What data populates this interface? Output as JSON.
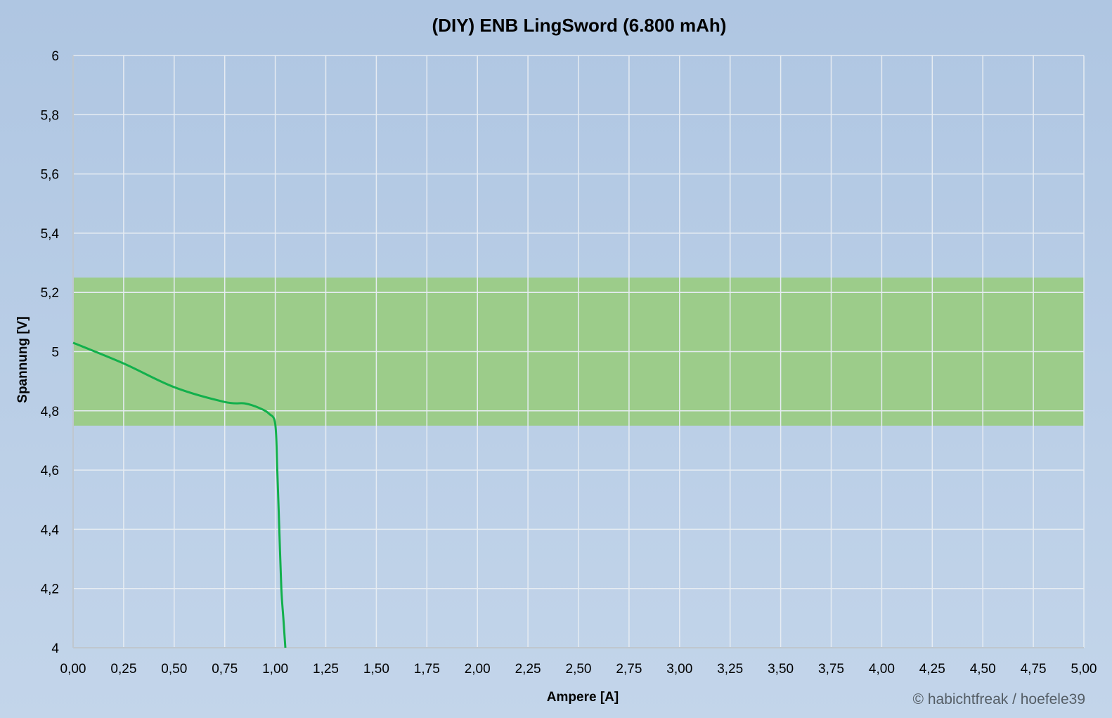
{
  "chart_data": {
    "type": "line",
    "title": "(DIY) ENB LingSword (6.800 mAh)",
    "xlabel": "Ampere [A]",
    "ylabel": "Spannung [V]",
    "credit": "© habichtfreak / hoefele39",
    "xlim": [
      0,
      5
    ],
    "ylim": [
      4,
      6
    ],
    "x_ticks": [
      "0,00",
      "0,25",
      "0,50",
      "0,75",
      "1,00",
      "1,25",
      "1,50",
      "1,75",
      "2,00",
      "2,25",
      "2,50",
      "2,75",
      "3,00",
      "3,25",
      "3,50",
      "3,75",
      "4,00",
      "4,25",
      "4,50",
      "4,75",
      "5,00"
    ],
    "y_ticks": [
      "4",
      "4,2",
      "4,4",
      "4,6",
      "4,8",
      "5",
      "5,2",
      "5,4",
      "5,6",
      "5,8",
      "6"
    ],
    "grid": true,
    "band": {
      "from": 4.75,
      "to": 5.25,
      "color": "#9ccc8a"
    },
    "series": [
      {
        "color": "#12b04c",
        "x": [
          0.0,
          0.25,
          0.5,
          0.75,
          0.85,
          0.92,
          0.97,
          1.0,
          1.01,
          1.02,
          1.03,
          1.04,
          1.05
        ],
        "y": [
          5.03,
          4.96,
          4.88,
          4.83,
          4.825,
          4.81,
          4.79,
          4.755,
          4.6,
          4.4,
          4.2,
          4.1,
          4.0
        ]
      }
    ]
  },
  "colors": {
    "background_top": "#afc6e2",
    "background_bottom": "#c3d5ea",
    "grid": "#e6ecf2",
    "axis": "#bfc7cf"
  }
}
